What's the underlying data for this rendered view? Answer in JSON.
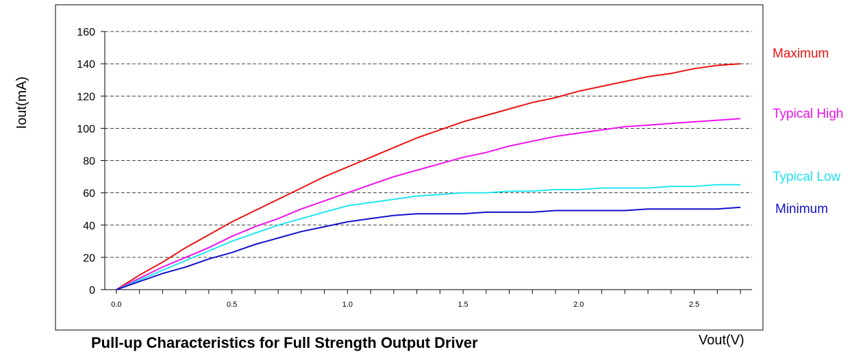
{
  "chart_data": {
    "type": "line",
    "title": "Pull-up Characteristics for Full Strength Output Driver",
    "xlabel": "Vout(V)",
    "ylabel": "Iout(mA)",
    "xlim": [
      -0.05,
      2.75
    ],
    "ylim": [
      0,
      160
    ],
    "x_ticks": [
      "0.0",
      "0.5",
      "1.0",
      "1.5",
      "2.0",
      "2.5"
    ],
    "y_ticks": [
      "0",
      "20",
      "40",
      "60",
      "80",
      "100",
      "120",
      "140",
      "160"
    ],
    "grid": "horizontal-dashed",
    "legend_placement": "right",
    "series": [
      {
        "name": "Maximum",
        "color": "#ee1111",
        "x": [
          0.0,
          0.1,
          0.2,
          0.3,
          0.4,
          0.5,
          0.6,
          0.7,
          0.8,
          0.9,
          1.0,
          1.1,
          1.2,
          1.3,
          1.4,
          1.5,
          1.6,
          1.7,
          1.8,
          1.9,
          2.0,
          2.1,
          2.2,
          2.3,
          2.4,
          2.5,
          2.6,
          2.7
        ],
        "y": [
          0,
          9,
          17,
          26,
          34,
          42,
          49,
          56,
          63,
          70,
          76,
          82,
          88,
          94,
          99,
          104,
          108,
          112,
          116,
          119,
          123,
          126,
          129,
          132,
          134,
          137,
          139,
          140
        ]
      },
      {
        "name": "Typical High",
        "color": "#ee11ee",
        "x": [
          0.0,
          0.1,
          0.2,
          0.3,
          0.4,
          0.5,
          0.6,
          0.7,
          0.8,
          0.9,
          1.0,
          1.1,
          1.2,
          1.3,
          1.4,
          1.5,
          1.6,
          1.7,
          1.8,
          1.9,
          2.0,
          2.1,
          2.2,
          2.3,
          2.4,
          2.5,
          2.6,
          2.7
        ],
        "y": [
          0,
          7,
          14,
          20,
          26,
          33,
          39,
          44,
          50,
          55,
          60,
          65,
          70,
          74,
          78,
          82,
          85,
          89,
          92,
          95,
          97,
          99,
          101,
          102,
          103,
          104,
          105,
          106
        ]
      },
      {
        "name": "Typical Low",
        "color": "#22e5ee",
        "x": [
          0.0,
          0.1,
          0.2,
          0.3,
          0.4,
          0.5,
          0.6,
          0.7,
          0.8,
          0.9,
          1.0,
          1.1,
          1.2,
          1.3,
          1.4,
          1.5,
          1.6,
          1.7,
          1.8,
          1.9,
          2.0,
          2.1,
          2.2,
          2.3,
          2.4,
          2.5,
          2.6,
          2.7
        ],
        "y": [
          0,
          6,
          12,
          18,
          24,
          30,
          35,
          40,
          44,
          48,
          52,
          54,
          56,
          58,
          59,
          60,
          60,
          61,
          61,
          62,
          62,
          63,
          63,
          63,
          64,
          64,
          65,
          65
        ]
      },
      {
        "name": "Minimum",
        "color": "#1111cc",
        "x": [
          0.0,
          0.1,
          0.2,
          0.3,
          0.4,
          0.5,
          0.6,
          0.7,
          0.8,
          0.9,
          1.0,
          1.1,
          1.2,
          1.3,
          1.4,
          1.5,
          1.6,
          1.7,
          1.8,
          1.9,
          2.0,
          2.1,
          2.2,
          2.3,
          2.4,
          2.5,
          2.6,
          2.7
        ],
        "y": [
          0,
          5,
          10,
          14,
          19,
          23,
          28,
          32,
          36,
          39,
          42,
          44,
          46,
          47,
          47,
          47,
          48,
          48,
          48,
          49,
          49,
          49,
          49,
          50,
          50,
          50,
          50,
          51
        ]
      }
    ]
  }
}
